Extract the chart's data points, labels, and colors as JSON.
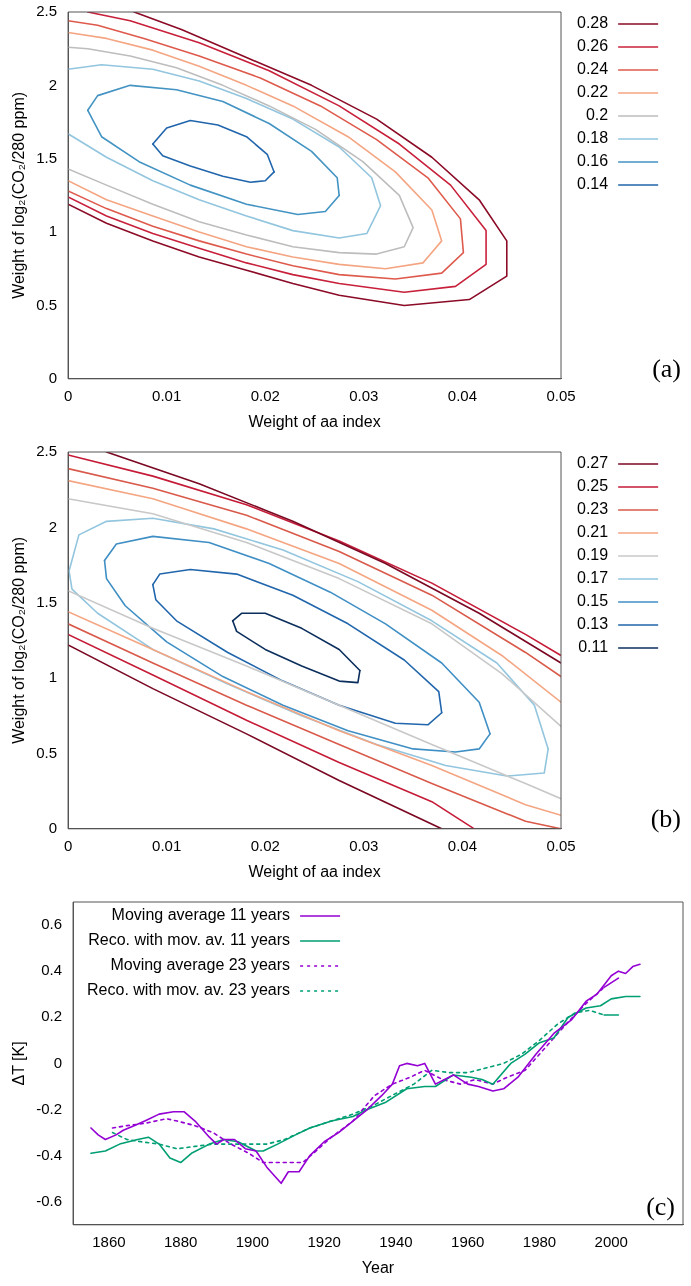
{
  "chart_data": [
    {
      "type": "line",
      "xlabel": "Weight of aa index",
      "ylabel": "Weight of log₂(CO₂/280 ppm)",
      "xlim": [
        0,
        0.05
      ],
      "ylim": [
        0,
        2.5
      ],
      "xticks": [
        0,
        0.01,
        0.02,
        0.03,
        0.04,
        0.05
      ],
      "yticks": [
        0,
        0.5,
        1,
        1.5,
        2,
        2.5
      ],
      "legend": "right",
      "marker": "none",
      "annotations": [
        "(a)"
      ],
      "series": [
        {
          "name": "0.28",
          "color": "#8b0a26",
          "x": [
            0,
            0.0039,
            0.0086,
            0.0133,
            0.0181,
            0.0228,
            0.0275,
            0.0341,
            0.0407,
            0.0445,
            0.0445,
            0.0417,
            0.0369,
            0.0313,
            0.0247,
            0.0181,
            0.0115,
            0.0067
          ],
          "values": [
            1.19,
            1.06,
            0.94,
            0.83,
            0.74,
            0.65,
            0.57,
            0.5,
            0.54,
            0.7,
            0.94,
            1.22,
            1.51,
            1.77,
            2.0,
            2.19,
            2.38,
            2.5
          ]
        },
        {
          "name": "0.26",
          "color": "#c8203a",
          "x": [
            0,
            0.0039,
            0.0086,
            0.0133,
            0.0181,
            0.0228,
            0.0275,
            0.0341,
            0.0393,
            0.0424,
            0.0424,
            0.0388,
            0.0336,
            0.0275,
            0.0204,
            0.0133,
            0.0063,
            0.002
          ],
          "values": [
            1.24,
            1.11,
            0.99,
            0.89,
            0.79,
            0.71,
            0.65,
            0.59,
            0.63,
            0.78,
            1.01,
            1.32,
            1.6,
            1.86,
            2.1,
            2.29,
            2.44,
            2.5
          ]
        },
        {
          "name": "0.24",
          "color": "#de5a4c",
          "x": [
            0,
            0.0039,
            0.0086,
            0.0133,
            0.0181,
            0.0228,
            0.0275,
            0.0332,
            0.0379,
            0.0401,
            0.0398,
            0.0365,
            0.0313,
            0.0256,
            0.0195,
            0.0133,
            0.0077,
            0.003,
            0
          ],
          "values": [
            1.28,
            1.16,
            1.04,
            0.94,
            0.85,
            0.77,
            0.71,
            0.68,
            0.72,
            0.86,
            1.09,
            1.37,
            1.63,
            1.86,
            2.05,
            2.2,
            2.32,
            2.41,
            2.44
          ]
        },
        {
          "name": "0.22",
          "color": "#f4a582",
          "x": [
            0,
            0.0039,
            0.0086,
            0.0133,
            0.0181,
            0.0228,
            0.0275,
            0.0322,
            0.036,
            0.0379,
            0.0369,
            0.0332,
            0.0284,
            0.0228,
            0.0181,
            0.0133,
            0.0086,
            0.0039,
            0
          ],
          "values": [
            1.35,
            1.22,
            1.11,
            1.0,
            0.9,
            0.83,
            0.78,
            0.75,
            0.79,
            0.94,
            1.15,
            1.41,
            1.65,
            1.86,
            2.0,
            2.13,
            2.24,
            2.32,
            2.36
          ]
        },
        {
          "name": "0.2",
          "color": "#bdbdbd",
          "x": [
            0,
            0.0039,
            0.0086,
            0.0133,
            0.0181,
            0.0228,
            0.0275,
            0.0313,
            0.0341,
            0.035,
            0.0336,
            0.0299,
            0.0251,
            0.0204,
            0.0157,
            0.011,
            0.0063,
            0.002,
            0
          ],
          "values": [
            1.43,
            1.32,
            1.19,
            1.07,
            0.98,
            0.9,
            0.86,
            0.85,
            0.9,
            1.03,
            1.25,
            1.48,
            1.7,
            1.86,
            2.0,
            2.12,
            2.2,
            2.25,
            2.26
          ]
        },
        {
          "name": "0.18",
          "color": "#92c5de",
          "x": [
            0,
            0.0039,
            0.0086,
            0.0133,
            0.0181,
            0.0228,
            0.0275,
            0.0303,
            0.0317,
            0.0308,
            0.0275,
            0.0228,
            0.0181,
            0.0133,
            0.0086,
            0.0034,
            0
          ],
          "values": [
            1.67,
            1.51,
            1.35,
            1.22,
            1.11,
            1.01,
            0.96,
            0.99,
            1.18,
            1.37,
            1.58,
            1.77,
            1.91,
            2.03,
            2.11,
            2.14,
            2.11
          ]
        },
        {
          "name": "0.16",
          "color": "#4393c3",
          "x": [
            0.002,
            0.003,
            0.0063,
            0.011,
            0.0157,
            0.0204,
            0.0247,
            0.0273,
            0.0275,
            null,
            0.002,
            0.0034,
            0.0072,
            0.0124,
            0.0181,
            0.0233,
            0.0261,
            0.0275
          ],
          "values": [
            1.83,
            1.93,
            2.0,
            1.97,
            1.89,
            1.74,
            1.55,
            1.37,
            1.25,
            null,
            1.83,
            1.65,
            1.48,
            1.32,
            1.19,
            1.12,
            1.14,
            1.25
          ]
        },
        {
          "name": "0.14",
          "color": "#2166ac",
          "x": [
            0.0086,
            0.01,
            0.0124,
            0.0152,
            0.0181,
            0.0202,
            0.0209,
            null,
            0.0086,
            0.0096,
            0.0124,
            0.0157,
            0.0185,
            0.02,
            0.0209
          ],
          "values": [
            1.6,
            1.71,
            1.76,
            1.73,
            1.65,
            1.53,
            1.41,
            null,
            1.6,
            1.52,
            1.45,
            1.38,
            1.34,
            1.35,
            1.41
          ]
        }
      ]
    },
    {
      "type": "line",
      "xlabel": "Weight of aa index",
      "ylabel": "Weight of log₂(CO₂/280 ppm)",
      "xlim": [
        0,
        0.05
      ],
      "ylim": [
        0,
        2.5
      ],
      "xticks": [
        0,
        0.01,
        0.02,
        0.03,
        0.04,
        0.05
      ],
      "yticks": [
        0,
        0.5,
        1,
        1.5,
        2,
        2.5
      ],
      "legend": "right",
      "marker": "none",
      "annotations": [
        "(b)"
      ],
      "series": [
        {
          "name": "0.27",
          "color": "#7a0822",
          "x": [
            0.0039,
            0.0133,
            0.0228,
            0.0322,
            0.0417,
            0.05,
            null,
            0,
            0.0086,
            0.0181,
            0.0275,
            0.0379
          ],
          "values": [
            2.5,
            2.29,
            2.04,
            1.76,
            1.43,
            1.1,
            null,
            1.22,
            0.93,
            0.63,
            0.32,
            0
          ]
        },
        {
          "name": "0.25",
          "color": "#c51b37",
          "x": [
            0,
            0.0086,
            0.0181,
            0.0275,
            0.0369,
            0.0464,
            0.05,
            null,
            0,
            0.0086,
            0.0181,
            0.0275,
            0.0369,
            0.0412
          ],
          "values": [
            2.48,
            2.34,
            2.15,
            1.91,
            1.63,
            1.29,
            1.15,
            null,
            1.29,
            1.02,
            0.72,
            0.44,
            0.18,
            0
          ]
        },
        {
          "name": "0.23",
          "color": "#d95a4a",
          "x": [
            0,
            0.0086,
            0.0181,
            0.0275,
            0.0369,
            0.0464,
            0.05,
            null,
            0,
            0.0086,
            0.0181,
            0.0275,
            0.0369,
            0.0464,
            0.05
          ],
          "values": [
            2.39,
            2.26,
            2.08,
            1.84,
            1.55,
            1.17,
            1.01,
            null,
            1.36,
            1.1,
            0.82,
            0.56,
            0.3,
            0.05,
            0
          ]
        },
        {
          "name": "0.21",
          "color": "#f4a582",
          "x": [
            0,
            0.0086,
            0.0181,
            0.0275,
            0.0369,
            0.044,
            0.05,
            null,
            0,
            0.0086,
            0.0181,
            0.0275,
            0.0369,
            0.0464,
            0.05
          ],
          "values": [
            2.31,
            2.19,
            1.99,
            1.76,
            1.45,
            1.15,
            0.84,
            null,
            1.44,
            1.19,
            0.91,
            0.65,
            0.42,
            0.16,
            0.09
          ]
        },
        {
          "name": "0.19",
          "color": "#c8c8c8",
          "x": [
            0,
            0.0086,
            0.0181,
            0.0275,
            0.0369,
            0.044,
            0.05,
            null,
            0,
            0.0086,
            0.0181,
            0.0275,
            0.0369,
            0.0464,
            0.05
          ],
          "values": [
            2.19,
            2.09,
            1.9,
            1.66,
            1.36,
            1.03,
            0.68,
            null,
            1.58,
            1.33,
            1.08,
            0.82,
            0.56,
            0.3,
            0.2
          ]
        },
        {
          "name": "0.17",
          "color": "#92c5de",
          "x": [
            0.0001,
            0.0011,
            0.0039,
            0.0086,
            0.0148,
            0.0218,
            0.0294,
            0.0369,
            0.0435,
            0.0473,
            0.0487,
            null,
            0.0001,
            0.0004,
            0.003,
            0.0086,
            0.0162,
            0.0237,
            0.0313,
            0.0383,
            0.0445,
            0.0483,
            0.0487
          ],
          "values": [
            1.71,
            1.95,
            2.04,
            2.06,
            1.99,
            1.85,
            1.64,
            1.38,
            1.1,
            0.82,
            0.53,
            null,
            1.71,
            1.59,
            1.43,
            1.19,
            0.96,
            0.75,
            0.56,
            0.42,
            0.35,
            0.37,
            0.53
          ]
        },
        {
          "name": "0.15",
          "color": "#3f8fc5",
          "x": [
            0.0037,
            0.0049,
            0.0086,
            0.0143,
            0.0204,
            0.0266,
            0.0322,
            0.0379,
            0.0417,
            0.0428,
            null,
            0.0037,
            0.0039,
            0.0058,
            0.01,
            0.0157,
            0.0218,
            0.0284,
            0.035,
            0.0393,
            0.0417,
            0.0428
          ],
          "values": [
            1.78,
            1.89,
            1.94,
            1.9,
            1.76,
            1.57,
            1.36,
            1.1,
            0.84,
            0.63,
            null,
            1.78,
            1.66,
            1.48,
            1.24,
            1.01,
            0.82,
            0.65,
            0.53,
            0.51,
            0.53,
            0.63
          ]
        },
        {
          "name": "0.13",
          "color": "#2166ac",
          "x": [
            0.0086,
            0.0093,
            0.0124,
            0.0171,
            0.0228,
            0.0284,
            0.0341,
            0.0376,
            0.0379,
            null,
            0.0086,
            0.0089,
            0.011,
            0.0162,
            0.0218,
            0.0275,
            0.0332,
            0.0365,
            0.0379
          ],
          "values": [
            1.62,
            1.69,
            1.72,
            1.69,
            1.55,
            1.36,
            1.12,
            0.91,
            0.77,
            null,
            1.62,
            1.52,
            1.38,
            1.17,
            0.98,
            0.82,
            0.7,
            0.69,
            0.77
          ]
        },
        {
          "name": "0.11",
          "color": "#0b2e5c",
          "x": [
            0.0167,
            0.0176,
            0.02,
            0.0237,
            0.0275,
            0.0296,
            null,
            0.0167,
            0.0171,
            0.02,
            0.0237,
            0.0275,
            0.0294,
            0.0296
          ],
          "values": [
            1.38,
            1.43,
            1.43,
            1.33,
            1.19,
            1.05,
            null,
            1.38,
            1.31,
            1.19,
            1.08,
            0.98,
            0.97,
            1.05
          ]
        }
      ]
    },
    {
      "type": "line",
      "xlabel": "Year",
      "ylabel": "ΔT [K]",
      "xlim": [
        1850,
        2020
      ],
      "ylim": [
        -0.7,
        0.7
      ],
      "xticks": [
        1860,
        1880,
        1900,
        1920,
        1940,
        1960,
        1980,
        2000
      ],
      "yticks": [
        -0.6,
        -0.4,
        -0.2,
        0,
        0.2,
        0.4,
        0.6
      ],
      "legend": "top left",
      "marker": "none",
      "annotations": [
        "(c)"
      ],
      "series": [
        {
          "name": "Moving average 11 years",
          "color": "#9400d3",
          "line_style": "solid",
          "x": [
            1855,
            1857,
            1859,
            1862,
            1864,
            1867,
            1870,
            1874,
            1878,
            1881,
            1884,
            1888,
            1890,
            1892,
            1895,
            1898,
            1901,
            1904,
            1908,
            1910,
            1913,
            1916,
            1920,
            1924,
            1928,
            1932,
            1936,
            1939,
            1941,
            1943,
            1946,
            1948,
            1951,
            1956,
            1960,
            1963,
            1967,
            1970,
            1974,
            1979,
            1984,
            1989,
            1993,
            1996,
            2000,
            2002,
            2004,
            2006,
            2008
          ],
          "values": [
            -0.28,
            -0.31,
            -0.33,
            -0.31,
            -0.29,
            -0.27,
            -0.25,
            -0.22,
            -0.21,
            -0.21,
            -0.25,
            -0.32,
            -0.35,
            -0.33,
            -0.33,
            -0.37,
            -0.38,
            -0.45,
            -0.52,
            -0.47,
            -0.47,
            -0.4,
            -0.34,
            -0.3,
            -0.25,
            -0.2,
            -0.14,
            -0.09,
            -0.01,
            0.0,
            -0.01,
            0.0,
            -0.09,
            -0.05,
            -0.09,
            -0.1,
            -0.12,
            -0.11,
            -0.06,
            0.04,
            0.13,
            0.19,
            0.27,
            0.3,
            0.38,
            0.4,
            0.39,
            0.42,
            0.43
          ]
        },
        {
          "name": "Reco. with mov. av. 11 years",
          "color": "#009e73",
          "line_style": "solid",
          "x": [
            1855,
            1859,
            1863,
            1868,
            1871,
            1874,
            1877,
            1880,
            1883,
            1888,
            1892,
            1896,
            1901,
            1903,
            1907,
            1912,
            1916,
            1922,
            1928,
            1932,
            1937,
            1943,
            1948,
            1951,
            1956,
            1961,
            1964,
            1967,
            1972,
            1976,
            1980,
            1984,
            1988,
            1993,
            1997,
            2000,
            2004,
            2008
          ],
          "values": [
            -0.39,
            -0.38,
            -0.35,
            -0.33,
            -0.32,
            -0.35,
            -0.41,
            -0.43,
            -0.39,
            -0.35,
            -0.33,
            -0.34,
            -0.38,
            -0.38,
            -0.35,
            -0.31,
            -0.28,
            -0.25,
            -0.23,
            -0.2,
            -0.17,
            -0.11,
            -0.1,
            -0.1,
            -0.05,
            -0.06,
            -0.07,
            -0.09,
            0.0,
            0.04,
            0.09,
            0.11,
            0.2,
            0.24,
            0.25,
            0.28,
            0.29,
            0.29
          ]
        },
        {
          "name": "Moving average 23 years",
          "color": "#9400d3",
          "line_style": "dotted",
          "x": [
            1861,
            1865,
            1870,
            1876,
            1879,
            1884,
            1889,
            1894,
            1899,
            1903,
            1908,
            1914,
            1917,
            1922,
            1928,
            1934,
            1939,
            1944,
            1948,
            1953,
            1958,
            1962,
            1967,
            1971,
            1976,
            1980,
            1984,
            1988,
            1993,
            1998,
            2002
          ],
          "values": [
            -0.28,
            -0.27,
            -0.26,
            -0.24,
            -0.25,
            -0.27,
            -0.3,
            -0.35,
            -0.39,
            -0.43,
            -0.43,
            -0.43,
            -0.39,
            -0.32,
            -0.25,
            -0.14,
            -0.09,
            -0.06,
            -0.03,
            -0.07,
            -0.09,
            -0.07,
            -0.09,
            -0.06,
            -0.03,
            0.04,
            0.11,
            0.18,
            0.26,
            0.33,
            0.37
          ]
        },
        {
          "name": "Reco. with mov. av. 23 years",
          "color": "#009e73",
          "line_style": "dotted",
          "x": [
            1861,
            1865,
            1869,
            1874,
            1879,
            1884,
            1889,
            1894,
            1899,
            1904,
            1909,
            1916,
            1922,
            1928,
            1934,
            1940,
            1945,
            1950,
            1955,
            1960,
            1965,
            1970,
            1975,
            1980,
            1985,
            1990,
            1994,
            1998,
            2002
          ],
          "values": [
            -0.3,
            -0.33,
            -0.34,
            -0.35,
            -0.37,
            -0.36,
            -0.35,
            -0.35,
            -0.35,
            -0.35,
            -0.33,
            -0.28,
            -0.25,
            -0.22,
            -0.18,
            -0.13,
            -0.09,
            -0.03,
            -0.04,
            -0.04,
            -0.02,
            0.0,
            0.04,
            0.1,
            0.17,
            0.22,
            0.23,
            0.21,
            0.21
          ]
        }
      ]
    }
  ]
}
